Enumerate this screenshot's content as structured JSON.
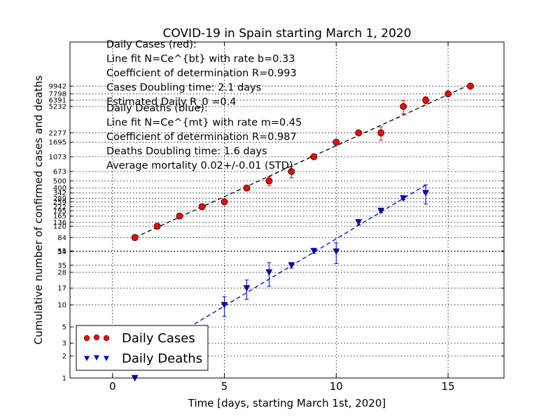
{
  "chart_data": {
    "type": "scatter",
    "title": "COVID-19 in Spain starting March 1, 2020",
    "xlabel": "Time [days, starting March 1st, 2020]",
    "ylabel": "Cumulative number of confirmed cases and deaths",
    "x_scale": "linear",
    "y_scale": "log",
    "xlim": [
      -1.9,
      17.5
    ],
    "ylim": [
      1,
      40000
    ],
    "grid": true,
    "x_ticks": [
      0,
      5,
      10,
      15
    ],
    "x_tick_labels": [
      "0",
      "5",
      "10",
      "15"
    ],
    "y_ticks": [
      1,
      2,
      3,
      5,
      10,
      17,
      28,
      35,
      54,
      55,
      84,
      120,
      136,
      165,
      195,
      222,
      259,
      289,
      342,
      400,
      500,
      673,
      1073,
      1695,
      2277,
      5232,
      6391,
      7798,
      9942
    ],
    "y_tick_labels": [
      "1",
      "2",
      "3",
      "5",
      "10",
      "17",
      "28",
      "35",
      "54",
      "55",
      "84",
      "120",
      "136",
      "165",
      "195",
      "222",
      "259",
      "289",
      "342",
      "400",
      "500",
      "673",
      "1073",
      "1695",
      "2277",
      "5232",
      "6391",
      "7798",
      "9942"
    ],
    "series": [
      {
        "name": "Daily Cases",
        "color": "#ff0000",
        "marker": "circle",
        "x": [
          1,
          2,
          3,
          4,
          5,
          6,
          7,
          8,
          9,
          10,
          11,
          12,
          13,
          14,
          15,
          16
        ],
        "y": [
          84,
          120,
          165,
          222,
          259,
          400,
          500,
          673,
          1073,
          1695,
          2277,
          2277,
          5232,
          6391,
          7798,
          9942
        ],
        "yerr": [
          7,
          10,
          10,
          14,
          16,
          20,
          70,
          120,
          30,
          70,
          90,
          470,
          1100,
          700,
          100,
          500
        ]
      },
      {
        "name": "Daily Deaths",
        "color": "#0000cc",
        "marker": "triangle-down",
        "x": [
          1,
          5,
          6,
          7,
          8,
          9,
          10,
          11,
          12,
          13,
          14
        ],
        "y": [
          1,
          10,
          17,
          28,
          35,
          55,
          54,
          136,
          195,
          289,
          342
        ],
        "yerr": [
          0,
          3,
          5,
          10,
          3,
          4,
          17,
          12,
          10,
          12,
          100
        ]
      }
    ],
    "fits": [
      {
        "series": "Daily Cases",
        "color": "#000000",
        "style": "dashed",
        "x": [
          1,
          16
        ],
        "y": [
          84,
          10500
        ]
      },
      {
        "series": "Daily Deaths",
        "color": "#0000cc",
        "style": "dashed",
        "x": [
          3.4,
          14
        ],
        "y": [
          4.9,
          440
        ]
      }
    ],
    "annotations": {
      "cases": [
        "Daily Cases (red):",
        "Line fit N=Ce^{bt} with rate b=0.33",
        "Coefficient of determination R=0.993",
        "Cases Doubling time: 2.1 days",
        "Estimated Daily R_0 =0.4"
      ],
      "deaths": [
        "Daily Deaths (blue):",
        "Line fit N=Ce^{mt} with rate m=0.45",
        "Coefficient of determination R=0.987",
        "Deaths Doubling time: 1.6 days",
        "Average mortality 0.02+/-0.01 (STD)"
      ]
    },
    "legend": {
      "placement": "lower-left",
      "entries": [
        "Daily Cases",
        "Daily Deaths"
      ]
    }
  }
}
